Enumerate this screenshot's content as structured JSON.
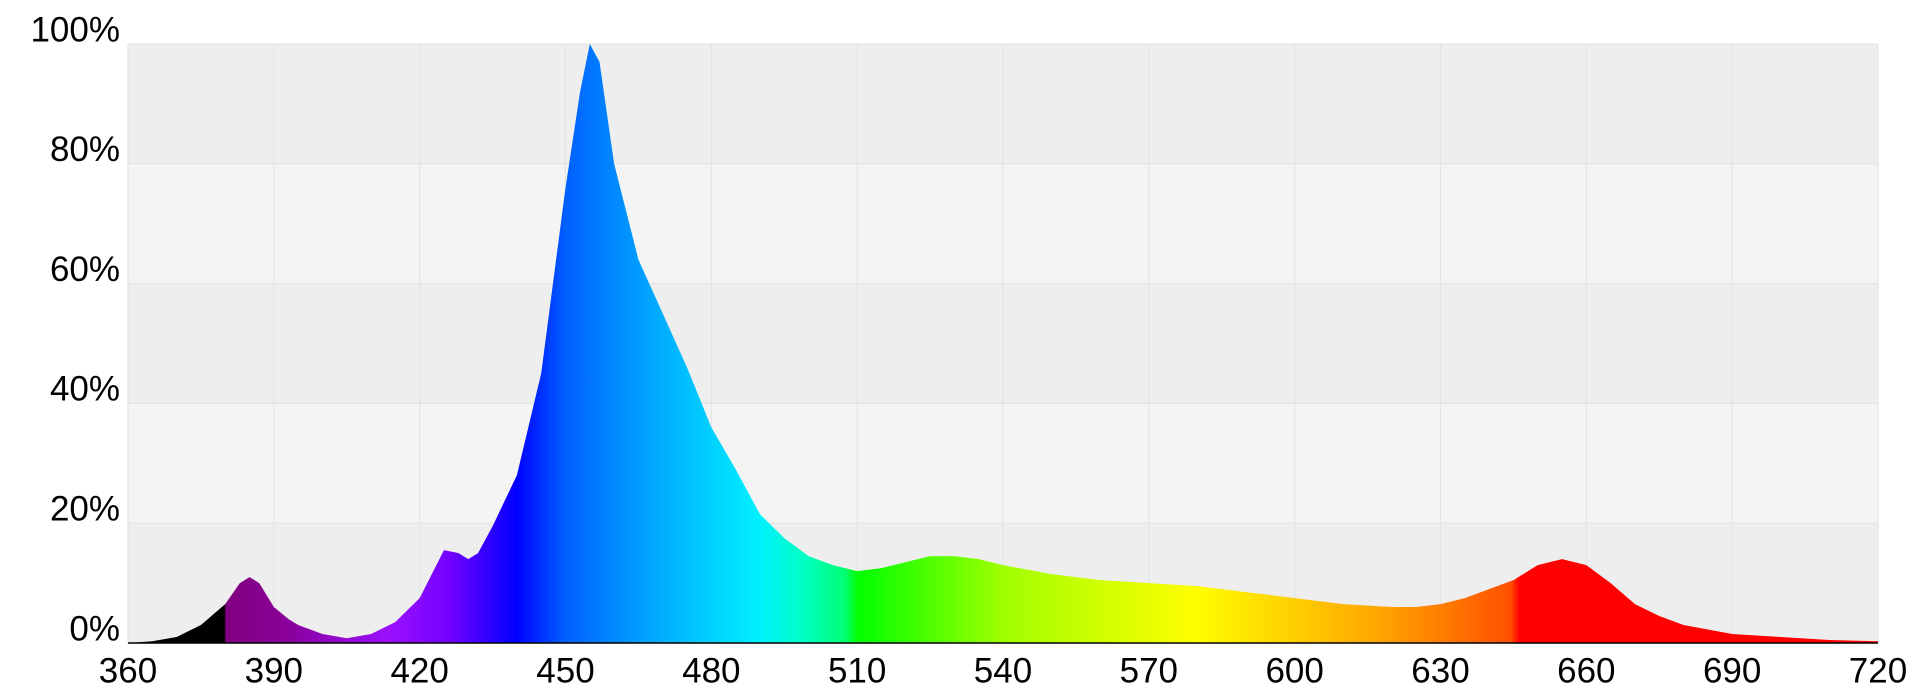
{
  "chart_data": {
    "type": "area",
    "x": [
      360,
      365,
      370,
      375,
      380,
      383,
      385,
      387,
      390,
      393,
      395,
      400,
      405,
      410,
      415,
      420,
      425,
      428,
      430,
      432,
      435,
      440,
      445,
      450,
      453,
      455,
      457,
      460,
      465,
      470,
      475,
      480,
      485,
      490,
      495,
      500,
      505,
      510,
      515,
      520,
      525,
      530,
      535,
      540,
      550,
      560,
      570,
      580,
      590,
      600,
      610,
      620,
      625,
      630,
      635,
      640,
      645,
      650,
      655,
      660,
      665,
      670,
      675,
      680,
      690,
      700,
      710,
      720
    ],
    "y": [
      0,
      0.3,
      1,
      3,
      6.5,
      10,
      11,
      10,
      6,
      4,
      3,
      1.5,
      0.8,
      1.5,
      3.5,
      7.5,
      15.5,
      15,
      14,
      15,
      19.5,
      28,
      45,
      76,
      92,
      100,
      97,
      80,
      64,
      55,
      46,
      36,
      29,
      21.5,
      17.5,
      14.5,
      13,
      12,
      12.5,
      13.5,
      14.5,
      14.5,
      14,
      13,
      11.5,
      10.5,
      10,
      9.5,
      8.5,
      7.5,
      6.5,
      6,
      6,
      6.5,
      7.5,
      9,
      10.5,
      13,
      14,
      13,
      10,
      6.5,
      4.5,
      3,
      1.5,
      1,
      0.5,
      0.3
    ],
    "xlim": [
      360,
      720
    ],
    "ylim": [
      0,
      100
    ],
    "xticks": [
      360,
      390,
      420,
      450,
      480,
      510,
      540,
      570,
      600,
      630,
      660,
      690,
      720
    ],
    "yticks": [
      {
        "value": 0,
        "label": "0%"
      },
      {
        "value": 20,
        "label": "20%"
      },
      {
        "value": 40,
        "label": "40%"
      },
      {
        "value": 60,
        "label": "60%"
      },
      {
        "value": 80,
        "label": "80%"
      },
      {
        "value": 100,
        "label": "100%"
      }
    ],
    "grid": true
  }
}
